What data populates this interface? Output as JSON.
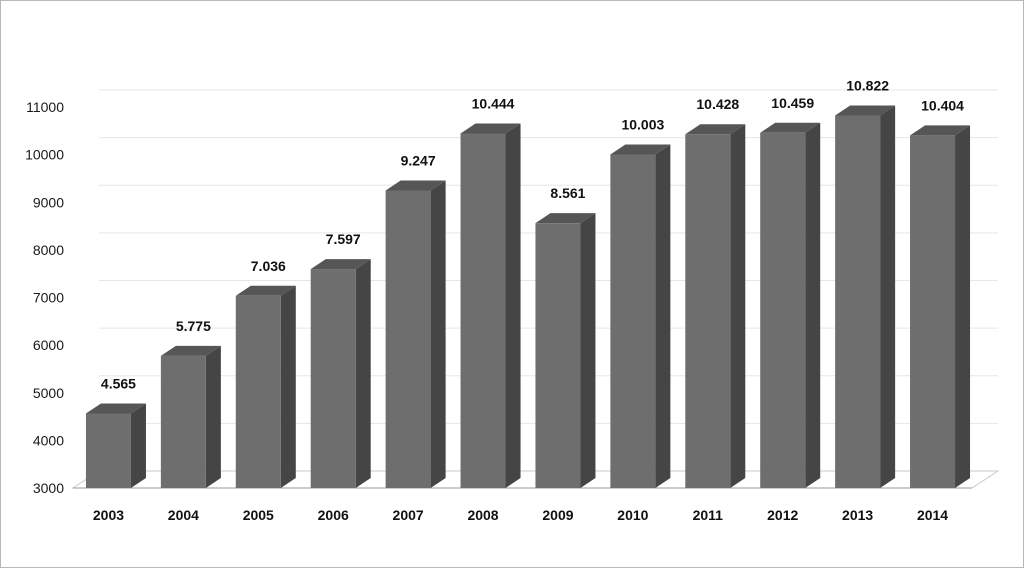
{
  "chart_data": {
    "type": "bar",
    "categories": [
      "2003",
      "2004",
      "2005",
      "2006",
      "2007",
      "2008",
      "2009",
      "2010",
      "2011",
      "2012",
      "2013",
      "2014"
    ],
    "values": [
      4565,
      5775,
      7036,
      7597,
      9247,
      10444,
      8561,
      10003,
      10428,
      10459,
      10822,
      10404
    ],
    "data_labels": [
      "4.565",
      "5.775",
      "7.036",
      "7.597",
      "9.247",
      "10.444",
      "8.561",
      "10.003",
      "10.428",
      "10.459",
      "10.822",
      "10.404"
    ],
    "y_ticks": [
      "3000",
      "4000",
      "5000",
      "6000",
      "7000",
      "8000",
      "9000",
      "10000",
      "11000"
    ],
    "ylim": [
      3000,
      11000
    ],
    "title": "",
    "xlabel": "",
    "ylabel": "",
    "grid": true,
    "style": "3d-column",
    "colors": {
      "bar_front": "#6e6e6e",
      "bar_side": "#454545",
      "bar_top": "#565656",
      "grid": "#e6e6e6"
    }
  }
}
